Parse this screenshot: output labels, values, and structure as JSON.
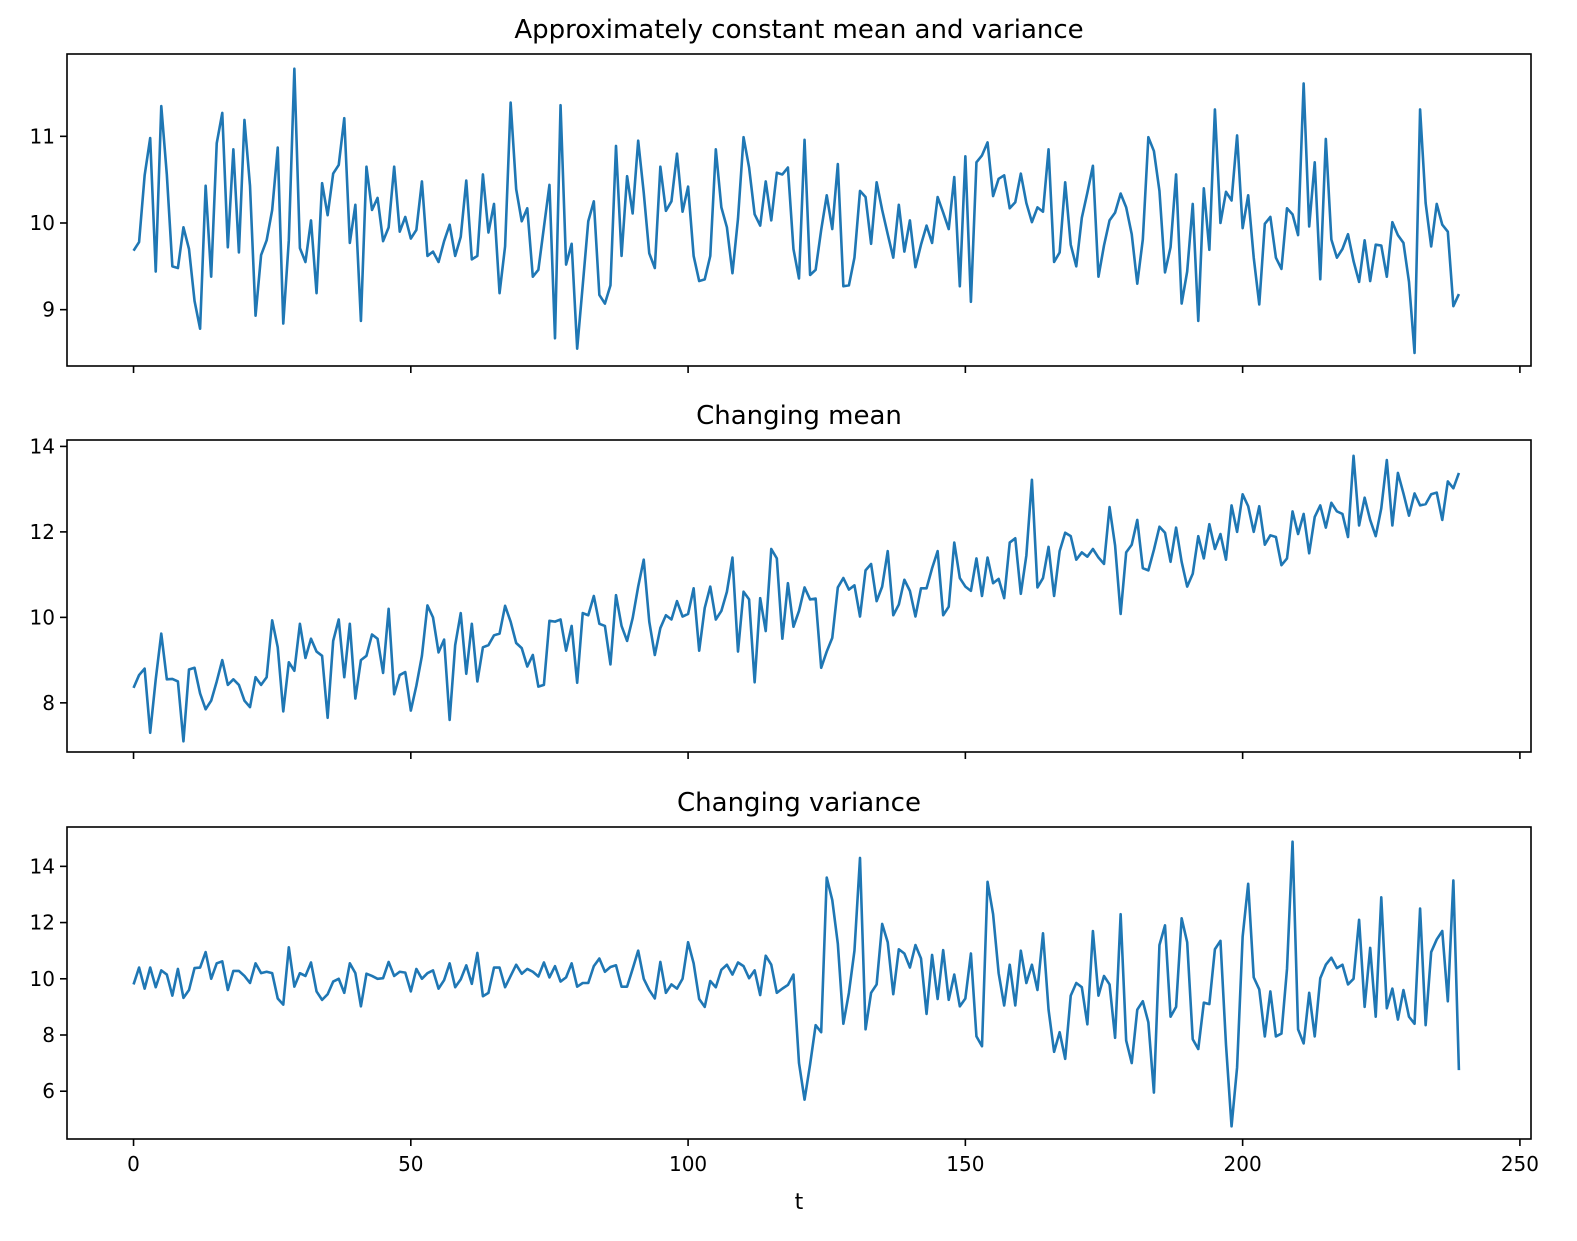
{
  "chart_data": [
    {
      "type": "line",
      "title": "Approximately constant mean and variance",
      "xlabel": "",
      "ylabel": "",
      "xlim": [
        -12,
        252
      ],
      "ylim": [
        8.35,
        11.95
      ],
      "xticks": [
        0,
        50,
        100,
        150,
        200,
        250
      ],
      "show_xtick_labels": false,
      "yticks": [
        9,
        10,
        11
      ],
      "grid": false,
      "color": "#1f77b4",
      "series": [
        {
          "x_start": 0,
          "x_step": 1,
          "values": [
            9.68,
            9.78,
            10.55,
            10.98,
            9.44,
            11.35,
            10.56,
            9.5,
            9.48,
            9.95,
            9.7,
            9.1,
            8.78,
            10.43,
            9.38,
            10.92,
            11.27,
            9.72,
            10.85,
            9.66,
            11.19,
            10.43,
            8.93,
            9.63,
            9.8,
            10.15,
            10.87,
            8.84,
            9.8,
            11.78,
            9.71,
            9.55,
            10.03,
            9.19,
            10.46,
            10.09,
            10.57,
            10.67,
            11.21,
            9.77,
            10.21,
            8.87,
            10.65,
            10.15,
            10.29,
            9.79,
            9.95,
            10.65,
            9.9,
            10.07,
            9.82,
            9.92,
            10.48,
            9.62,
            9.67,
            9.55,
            9.79,
            9.98,
            9.62,
            9.84,
            10.49,
            9.58,
            9.62,
            10.56,
            9.89,
            10.22,
            9.19,
            9.73,
            11.39,
            10.39,
            10.02,
            10.17,
            9.38,
            9.46,
            9.95,
            10.44,
            8.67,
            11.36,
            9.52,
            9.76,
            8.55,
            9.28,
            10.02,
            10.25,
            9.17,
            9.07,
            9.28,
            10.89,
            9.62,
            10.54,
            10.11,
            10.95,
            10.35,
            9.65,
            9.48,
            10.65,
            10.14,
            10.25,
            10.8,
            10.13,
            10.42,
            9.62,
            9.33,
            9.35,
            9.62,
            10.85,
            10.18,
            9.95,
            9.42,
            10.05,
            10.99,
            10.64,
            10.1,
            9.97,
            10.48,
            10.03,
            10.58,
            10.56,
            10.64,
            9.7,
            9.36,
            10.96,
            9.4,
            9.46,
            9.92,
            10.32,
            9.93,
            10.68,
            9.27,
            9.28,
            9.6,
            10.37,
            10.3,
            9.76,
            10.47,
            10.15,
            9.87,
            9.6,
            10.21,
            9.67,
            10.03,
            9.49,
            9.75,
            9.97,
            9.77,
            10.3,
            10.12,
            9.93,
            10.53,
            9.27,
            10.77,
            9.09,
            10.7,
            10.78,
            10.93,
            10.31,
            10.51,
            10.55,
            10.17,
            10.24,
            10.57,
            10.23,
            10.01,
            10.18,
            10.13,
            10.85,
            9.55,
            9.66,
            10.47,
            9.75,
            9.5,
            10.06,
            10.35,
            10.66,
            9.38,
            9.74,
            10.03,
            10.12,
            10.34,
            10.18,
            9.87,
            9.3,
            9.81,
            10.99,
            10.83,
            10.37,
            9.43,
            9.72,
            10.56,
            9.07,
            9.44,
            10.22,
            8.87,
            10.4,
            9.69,
            11.31,
            10.0,
            10.36,
            10.26,
            11.01,
            9.94,
            10.32,
            9.6,
            9.06,
            9.99,
            10.07,
            9.6,
            9.47,
            10.17,
            10.1,
            9.86,
            11.61,
            9.96,
            10.7,
            9.35,
            10.97,
            9.81,
            9.6,
            9.7,
            9.87,
            9.56,
            9.32,
            9.8,
            9.33,
            9.75,
            9.74,
            9.38,
            10.01,
            9.86,
            9.77,
            9.32,
            8.5,
            11.31,
            10.23,
            9.73,
            10.22,
            9.98,
            9.9,
            9.04,
            9.18
          ]
        }
      ]
    },
    {
      "type": "line",
      "title": "Changing mean",
      "xlabel": "",
      "ylabel": "",
      "xlim": [
        -12,
        252
      ],
      "ylim": [
        6.85,
        14.15
      ],
      "xticks": [
        0,
        50,
        100,
        150,
        200,
        250
      ],
      "show_xtick_labels": false,
      "yticks": [
        8,
        10,
        12,
        14
      ],
      "grid": false,
      "color": "#1f77b4",
      "series": [
        {
          "x_start": 0,
          "x_step": 1,
          "values": [
            8.35,
            8.65,
            8.8,
            7.3,
            8.55,
            9.62,
            8.55,
            8.56,
            8.5,
            7.1,
            8.78,
            8.82,
            8.22,
            7.85,
            8.05,
            8.5,
            9.0,
            8.42,
            8.55,
            8.42,
            8.05,
            7.9,
            8.6,
            8.42,
            8.6,
            9.93,
            9.3,
            7.8,
            8.95,
            8.75,
            9.85,
            9.05,
            9.5,
            9.2,
            9.1,
            7.65,
            9.45,
            9.95,
            8.6,
            9.85,
            8.1,
            9.0,
            9.1,
            9.6,
            9.5,
            8.7,
            10.2,
            8.2,
            8.65,
            8.72,
            7.82,
            8.4,
            9.1,
            10.28,
            10.0,
            9.18,
            9.48,
            7.6,
            9.35,
            10.1,
            8.68,
            9.85,
            8.5,
            9.3,
            9.35,
            9.58,
            9.62,
            10.27,
            9.9,
            9.4,
            9.28,
            8.85,
            9.12,
            8.38,
            8.42,
            9.92,
            9.9,
            9.95,
            9.22,
            9.8,
            8.47,
            10.1,
            10.05,
            10.5,
            9.85,
            9.8,
            8.9,
            10.52,
            9.8,
            9.45,
            9.98,
            10.72,
            11.35,
            9.9,
            9.12,
            9.75,
            10.05,
            9.95,
            10.38,
            10.02,
            10.08,
            10.68,
            9.22,
            10.22,
            10.72,
            9.95,
            10.15,
            10.6,
            11.4,
            9.2,
            10.6,
            10.42,
            8.48,
            10.45,
            9.68,
            11.6,
            11.38,
            9.5,
            10.8,
            9.78,
            10.15,
            10.7,
            10.42,
            10.44,
            8.82,
            9.2,
            9.52,
            10.7,
            10.92,
            10.65,
            10.75,
            10.02,
            11.1,
            11.25,
            10.38,
            10.72,
            11.55,
            10.05,
            10.3,
            10.88,
            10.62,
            10.02,
            10.68,
            10.68,
            11.15,
            11.55,
            10.05,
            10.25,
            11.75,
            10.92,
            10.72,
            10.62,
            11.38,
            10.5,
            11.4,
            10.8,
            10.9,
            10.45,
            11.75,
            11.85,
            10.55,
            11.45,
            13.22,
            10.7,
            10.92,
            11.65,
            10.5,
            11.55,
            11.98,
            11.9,
            11.35,
            11.52,
            11.42,
            11.6,
            11.4,
            11.25,
            12.58,
            11.68,
            10.08,
            11.52,
            11.7,
            12.28,
            11.15,
            11.1,
            11.58,
            12.12,
            11.98,
            11.3,
            12.1,
            11.3,
            10.72,
            11.02,
            11.9,
            11.38,
            12.18,
            11.6,
            11.95,
            11.35,
            12.62,
            12.0,
            12.88,
            12.6,
            12.0,
            12.6,
            11.7,
            11.92,
            11.88,
            11.22,
            11.38,
            12.48,
            11.95,
            12.42,
            11.5,
            12.35,
            12.62,
            12.1,
            12.68,
            12.48,
            12.42,
            11.88,
            13.78,
            12.15,
            12.8,
            12.28,
            11.9,
            12.55,
            13.68,
            12.15,
            13.38,
            12.9,
            12.38,
            12.9,
            12.62,
            12.65,
            12.88,
            12.92,
            12.28,
            13.18,
            13.02,
            13.38
          ]
        }
      ]
    },
    {
      "type": "line",
      "title": "Changing variance",
      "xlabel": "t",
      "ylabel": "",
      "xlim": [
        -12,
        252
      ],
      "ylim": [
        4.3,
        15.4
      ],
      "xticks": [
        0,
        50,
        100,
        150,
        200,
        250
      ],
      "show_xtick_labels": true,
      "yticks": [
        6,
        8,
        10,
        12,
        14
      ],
      "grid": false,
      "color": "#1f77b4",
      "series": [
        {
          "x_start": 0,
          "x_step": 1,
          "values": [
            9.8,
            10.4,
            9.65,
            10.4,
            9.7,
            10.3,
            10.15,
            9.4,
            10.35,
            9.32,
            9.6,
            10.38,
            10.4,
            10.95,
            10.0,
            10.55,
            10.62,
            9.6,
            10.28,
            10.28,
            10.1,
            9.85,
            10.55,
            10.2,
            10.25,
            10.2,
            9.3,
            9.08,
            11.12,
            9.72,
            10.2,
            10.1,
            10.58,
            9.55,
            9.25,
            9.45,
            9.9,
            10.0,
            9.5,
            10.55,
            10.2,
            9.02,
            10.18,
            10.1,
            10.0,
            10.02,
            10.6,
            10.1,
            10.25,
            10.22,
            9.55,
            10.35,
            10.0,
            10.2,
            10.3,
            9.65,
            9.95,
            10.55,
            9.7,
            9.98,
            10.48,
            9.82,
            10.92,
            9.38,
            9.5,
            10.4,
            10.4,
            9.7,
            10.1,
            10.5,
            10.18,
            10.35,
            10.25,
            10.08,
            10.58,
            10.05,
            10.45,
            9.9,
            10.05,
            10.55,
            9.72,
            9.85,
            9.85,
            10.45,
            10.72,
            10.25,
            10.42,
            10.48,
            9.72,
            9.72,
            10.35,
            11.0,
            10.0,
            9.6,
            9.3,
            10.6,
            9.5,
            9.8,
            9.65,
            10.0,
            11.3,
            10.55,
            9.28,
            9.0,
            9.92,
            9.7,
            10.32,
            10.5,
            10.15,
            10.58,
            10.45,
            10.02,
            10.3,
            9.42,
            10.82,
            10.5,
            9.5,
            9.65,
            9.78,
            10.15,
            7.0,
            5.7,
            6.95,
            8.35,
            8.1,
            13.6,
            12.8,
            11.25,
            8.4,
            9.5,
            11.0,
            14.3,
            8.2,
            9.5,
            9.8,
            11.95,
            11.3,
            9.45,
            11.05,
            10.9,
            10.4,
            11.2,
            10.72,
            8.75,
            10.85,
            9.28,
            11.02,
            9.25,
            10.15,
            9.02,
            9.3,
            10.9,
            7.95,
            7.6,
            13.45,
            12.3,
            10.2,
            9.05,
            10.5,
            9.05,
            11.0,
            9.85,
            10.5,
            9.6,
            11.62,
            8.9,
            7.4,
            8.1,
            7.15,
            9.4,
            9.85,
            9.7,
            8.38,
            11.7,
            9.4,
            10.1,
            9.8,
            7.9,
            12.3,
            7.8,
            7.0,
            8.9,
            9.2,
            8.45,
            5.95,
            11.2,
            11.9,
            8.65,
            9.0,
            12.15,
            11.3,
            7.85,
            7.5,
            9.15,
            9.1,
            11.05,
            11.35,
            7.65,
            4.75,
            6.85,
            11.5,
            13.38,
            10.05,
            9.62,
            7.95,
            9.55,
            7.95,
            8.05,
            10.35,
            14.88,
            8.2,
            7.7,
            9.5,
            7.95,
            10.02,
            10.5,
            10.75,
            10.38,
            10.5,
            9.8,
            10.0,
            12.1,
            9.0,
            11.1,
            8.65,
            12.9,
            8.95,
            9.65,
            8.55,
            9.6,
            8.65,
            8.4,
            12.5,
            8.35,
            10.95,
            11.4,
            11.7,
            9.2,
            13.5,
            6.75
          ]
        }
      ]
    }
  ]
}
